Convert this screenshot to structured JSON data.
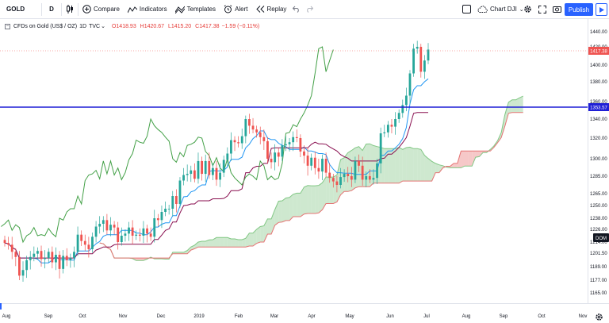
{
  "toolbar": {
    "symbol": "GOLD",
    "interval": "D",
    "compare_label": "Compare",
    "indicators_label": "Indicators",
    "templates_label": "Templates",
    "alert_label": "Alert",
    "replay_label": "Replay",
    "layout_label": "Chart DJI",
    "publish_label": "Publish"
  },
  "legend": {
    "title": "CFDs on Gold (US$ / OZ)",
    "interval": "1D",
    "exchange": "TVC",
    "open": "O1418.93",
    "high": "H1420.67",
    "low": "L1415.20",
    "close": "C1417.38",
    "change": "−1.59 (−0.11%)"
  },
  "chart_data": {
    "type": "line",
    "symbol": "GOLD",
    "price_axis_ticks": [
      "1440.00",
      "1420.00",
      "1400.00",
      "1380.00",
      "1360.00",
      "1340.00",
      "1320.00",
      "1300.00",
      "1285.00",
      "1265.00",
      "1250.00",
      "1238.00",
      "1226.00",
      "1214.00",
      "1201.50",
      "1189.00",
      "1177.00",
      "1165.00",
      "1154.00"
    ],
    "time_axis_ticks": [
      "Aug",
      "Sep",
      "Oct",
      "Nov",
      "Dec",
      "2019",
      "Feb",
      "Mar",
      "Apr",
      "May",
      "Jun",
      "Jul",
      "Aug",
      "Sep",
      "Oct",
      "Nov"
    ],
    "last_price_label": "1417.38",
    "horizontal_line_label": "1353.57",
    "horizontal_line_value": 1353.57,
    "dom_label": "DOM",
    "colors": {
      "candle_up": "#26a69a",
      "candle_down": "#ef5350",
      "tenkan": "#2196f3",
      "kijun": "#880e4f",
      "chikou": "#43a047",
      "cloud_bull": "#a5d6a7",
      "cloud_bear": "#ef9a9a",
      "hline": "#1f1fd6",
      "last_price": "#ef5350"
    },
    "close_series": [
      1213,
      1211,
      1203,
      1198,
      1181,
      1186,
      1195,
      1198,
      1201,
      1204,
      1196,
      1197,
      1203,
      1193,
      1200,
      1187,
      1199,
      1195,
      1197,
      1203,
      1221,
      1215,
      1211,
      1206,
      1219,
      1229,
      1232,
      1236,
      1225,
      1231,
      1228,
      1214,
      1220,
      1222,
      1228,
      1220,
      1221,
      1220,
      1227,
      1222,
      1219,
      1238,
      1236,
      1244,
      1247,
      1247,
      1262,
      1252,
      1280,
      1286,
      1287,
      1290,
      1282,
      1298,
      1287,
      1298,
      1286,
      1292,
      1281,
      1288,
      1299,
      1305,
      1318,
      1316,
      1315,
      1322,
      1340,
      1333,
      1329,
      1326,
      1321,
      1317,
      1300,
      1297,
      1306,
      1302,
      1313,
      1314,
      1316,
      1321,
      1320,
      1307,
      1303,
      1294,
      1301,
      1292,
      1289,
      1300,
      1288,
      1283,
      1279,
      1275,
      1284,
      1287,
      1285,
      1281,
      1298,
      1294,
      1281,
      1285,
      1281,
      1283,
      1296,
      1325,
      1326,
      1334,
      1332,
      1340,
      1347,
      1356,
      1366,
      1390,
      1418,
      1420,
      1392,
      1405,
      1417
    ]
  }
}
